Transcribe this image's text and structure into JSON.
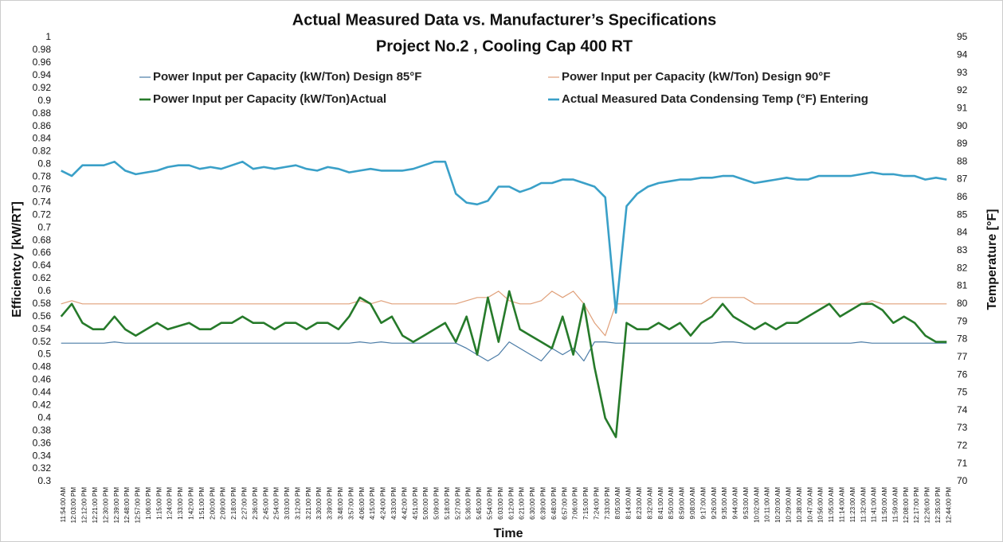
{
  "chart_data": {
    "type": "line",
    "title": "Actual Measured Data vs. Manufacturer’s Specifications",
    "subtitle": "Project No.2 , Cooling Cap 400 RT",
    "xlabel": "Time",
    "ylabel": "Efficientcy [kW/RT]",
    "y2label": "Temperature [°F]",
    "categories": [
      "11:54:00 AM",
      "12:03:00 PM",
      "12:12:00 PM",
      "12:21:00 PM",
      "12:30:00 PM",
      "12:39:00 PM",
      "12:48:00 PM",
      "12:57:00 PM",
      "1:06:00 PM",
      "1:15:00 PM",
      "1:24:00 PM",
      "1:33:00 PM",
      "1:42:00 PM",
      "1:51:00 PM",
      "2:00:00 PM",
      "2:09:00 PM",
      "2:18:00 PM",
      "2:27:00 PM",
      "2:36:00 PM",
      "2:45:00 PM",
      "2:54:00 PM",
      "3:03:00 PM",
      "3:12:00 PM",
      "3:21:00 PM",
      "3:30:00 PM",
      "3:39:00 PM",
      "3:48:00 PM",
      "3:57:00 PM",
      "4:06:00 PM",
      "4:15:00 PM",
      "4:24:00 PM",
      "4:33:00 PM",
      "4:42:00 PM",
      "4:51:00 PM",
      "5:00:00 PM",
      "5:09:00 PM",
      "5:18:00 PM",
      "5:27:00 PM",
      "5:36:00 PM",
      "5:45:00 PM",
      "5:54:00 PM",
      "6:03:00 PM",
      "6:12:00 PM",
      "6:21:00 PM",
      "6:30:00 PM",
      "6:39:00 PM",
      "6:48:00 PM",
      "6:57:00 PM",
      "7:06:00 PM",
      "7:15:00 PM",
      "7:24:00 PM",
      "7:33:00 PM",
      "8:05:00 AM",
      "8:14:00 AM",
      "8:23:00 AM",
      "8:32:00 AM",
      "8:41:00 AM",
      "8:50:00 AM",
      "8:59:00 AM",
      "9:08:00 AM",
      "9:17:00 AM",
      "9:26:00 AM",
      "9:35:00 AM",
      "9:44:00 AM",
      "9:53:00 AM",
      "10:02:00 AM",
      "10:11:00 AM",
      "10:20:00 AM",
      "10:29:00 AM",
      "10:38:00 AM",
      "10:47:00 AM",
      "10:56:00 AM",
      "11:05:00 AM",
      "11:14:00 AM",
      "11:23:00 AM",
      "11:32:00 AM",
      "11:41:00 AM",
      "11:50:00 AM",
      "11:59:00 AM",
      "12:08:00 PM",
      "12:17:00 PM",
      "12:26:00 PM",
      "12:35:00 PM",
      "12:44:00 PM"
    ],
    "series": [
      {
        "name": "Power Input per Capacity (kW/Ton) Design 85°F",
        "color": "#4a7ba6",
        "width": 1.2,
        "values": [
          0.518,
          0.518,
          0.518,
          0.518,
          0.518,
          0.52,
          0.518,
          0.518,
          0.518,
          0.518,
          0.518,
          0.518,
          0.518,
          0.518,
          0.518,
          0.518,
          0.518,
          0.518,
          0.518,
          0.518,
          0.518,
          0.518,
          0.518,
          0.518,
          0.518,
          0.518,
          0.518,
          0.518,
          0.52,
          0.518,
          0.52,
          0.518,
          0.518,
          0.518,
          0.518,
          0.518,
          0.518,
          0.518,
          0.51,
          0.5,
          0.49,
          0.5,
          0.52,
          0.51,
          0.5,
          0.49,
          0.51,
          0.5,
          0.51,
          0.49,
          0.52,
          0.52,
          0.518,
          0.518,
          0.518,
          0.518,
          0.518,
          0.518,
          0.518,
          0.518,
          0.518,
          0.518,
          0.52,
          0.52,
          0.518,
          0.518,
          0.518,
          0.518,
          0.518,
          0.518,
          0.518,
          0.518,
          0.518,
          0.518,
          0.518,
          0.52,
          0.518,
          0.518,
          0.518,
          0.518,
          0.518,
          0.518,
          0.518,
          0.518
        ]
      },
      {
        "name": "Power Input per Capacity (kW/Ton) Design 90°F",
        "color": "#e0a07a",
        "width": 1.2,
        "values": [
          0.58,
          0.585,
          0.58,
          0.58,
          0.58,
          0.58,
          0.58,
          0.58,
          0.58,
          0.58,
          0.58,
          0.58,
          0.58,
          0.58,
          0.58,
          0.58,
          0.58,
          0.58,
          0.58,
          0.58,
          0.58,
          0.58,
          0.58,
          0.58,
          0.58,
          0.58,
          0.58,
          0.58,
          0.585,
          0.58,
          0.585,
          0.58,
          0.58,
          0.58,
          0.58,
          0.58,
          0.58,
          0.58,
          0.585,
          0.59,
          0.59,
          0.6,
          0.585,
          0.58,
          0.58,
          0.585,
          0.6,
          0.59,
          0.6,
          0.58,
          0.55,
          0.53,
          0.58,
          0.58,
          0.58,
          0.58,
          0.58,
          0.58,
          0.58,
          0.58,
          0.58,
          0.59,
          0.59,
          0.59,
          0.59,
          0.58,
          0.58,
          0.58,
          0.58,
          0.58,
          0.58,
          0.58,
          0.58,
          0.58,
          0.58,
          0.58,
          0.585,
          0.58,
          0.58,
          0.58,
          0.58,
          0.58,
          0.58,
          0.58
        ]
      },
      {
        "name": "Power Input per Capacity (kW/Ton)Actual",
        "color": "#267a2a",
        "width": 2.6,
        "values": [
          0.56,
          0.58,
          0.55,
          0.54,
          0.54,
          0.56,
          0.54,
          0.53,
          0.54,
          0.55,
          0.54,
          0.545,
          0.55,
          0.54,
          0.54,
          0.55,
          0.55,
          0.56,
          0.55,
          0.55,
          0.54,
          0.55,
          0.55,
          0.54,
          0.55,
          0.55,
          0.54,
          0.56,
          0.59,
          0.58,
          0.55,
          0.56,
          0.53,
          0.52,
          0.53,
          0.54,
          0.55,
          0.52,
          0.56,
          0.5,
          0.59,
          0.52,
          0.6,
          0.54,
          0.53,
          0.52,
          0.51,
          0.56,
          0.5,
          0.58,
          0.48,
          0.4,
          0.37,
          0.55,
          0.54,
          0.54,
          0.55,
          0.54,
          0.55,
          0.53,
          0.55,
          0.56,
          0.58,
          0.56,
          0.55,
          0.54,
          0.55,
          0.54,
          0.55,
          0.55,
          0.56,
          0.57,
          0.58,
          0.56,
          0.57,
          0.58,
          0.58,
          0.57,
          0.55,
          0.56,
          0.55,
          0.53,
          0.52,
          0.52
        ]
      },
      {
        "name": "Actual Measured Data Condensing Temp (°F) Entering",
        "color": "#3aa0c8",
        "width": 2.6,
        "axis": "y2",
        "values": [
          87.5,
          87.2,
          87.8,
          87.8,
          87.8,
          88,
          87.5,
          87.3,
          87.4,
          87.5,
          87.7,
          87.8,
          87.8,
          87.6,
          87.7,
          87.6,
          87.8,
          88,
          87.6,
          87.7,
          87.6,
          87.7,
          87.8,
          87.6,
          87.5,
          87.7,
          87.6,
          87.4,
          87.5,
          87.6,
          87.5,
          87.5,
          87.5,
          87.6,
          87.8,
          88,
          88,
          86.2,
          85.7,
          85.6,
          85.8,
          86.6,
          86.6,
          86.3,
          86.5,
          86.8,
          86.8,
          87,
          87,
          86.8,
          86.6,
          86,
          79.5,
          85.5,
          86.2,
          86.6,
          86.8,
          86.9,
          87,
          87,
          87.1,
          87.1,
          87.2,
          87.2,
          87,
          86.8,
          86.9,
          87,
          87.1,
          87,
          87,
          87.2,
          87.2,
          87.2,
          87.2,
          87.3,
          87.4,
          87.3,
          87.3,
          87.2,
          87.2,
          87,
          87.1,
          87
        ]
      }
    ],
    "ylim": [
      0.3,
      1
    ],
    "yticks": [
      0.3,
      0.32,
      0.34,
      0.36,
      0.38,
      0.4,
      0.42,
      0.44,
      0.46,
      0.48,
      0.5,
      0.52,
      0.54,
      0.56,
      0.58,
      0.6,
      0.62,
      0.64,
      0.66,
      0.68,
      0.7,
      0.72,
      0.74,
      0.76,
      0.78,
      0.8,
      0.82,
      0.84,
      0.86,
      0.88,
      0.9,
      0.92,
      0.94,
      0.96,
      0.98,
      1
    ],
    "y2lim": [
      70,
      95
    ],
    "y2ticks": [
      70,
      71,
      72,
      73,
      74,
      75,
      76,
      77,
      78,
      79,
      80,
      81,
      82,
      83,
      84,
      85,
      86,
      87,
      88,
      89,
      90,
      91,
      92,
      93,
      94,
      95
    ],
    "grid": false
  }
}
